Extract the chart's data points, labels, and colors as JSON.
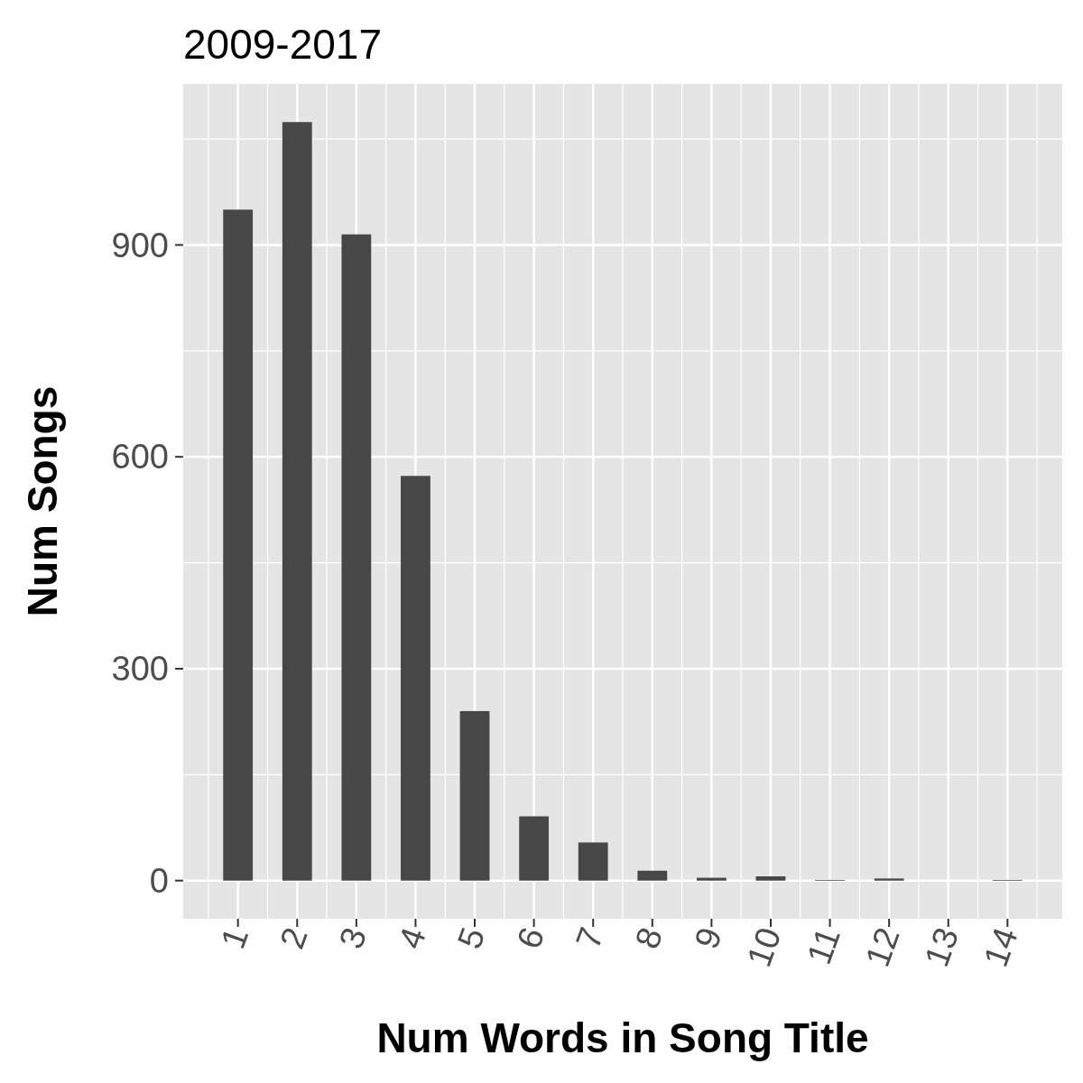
{
  "chart_data": {
    "type": "bar",
    "title": "2009-2017",
    "xlabel": "Num Words in Song Title",
    "ylabel": "Num Songs",
    "x": [
      1,
      2,
      3,
      4,
      5,
      6,
      7,
      8,
      9,
      10,
      11,
      12,
      13,
      14
    ],
    "values": [
      950,
      1074,
      915,
      573,
      240,
      91,
      54,
      14,
      4,
      6,
      1,
      3,
      0,
      1
    ],
    "color": "#474747",
    "xlim": [
      0.075,
      14.925
    ],
    "xticks": [
      1,
      2,
      3,
      4,
      5,
      6,
      7,
      8,
      9,
      10,
      11,
      12,
      13,
      14
    ],
    "ylim": [
      -54,
      1128
    ],
    "yticks": [
      0,
      300,
      600,
      900
    ],
    "grid": true
  }
}
